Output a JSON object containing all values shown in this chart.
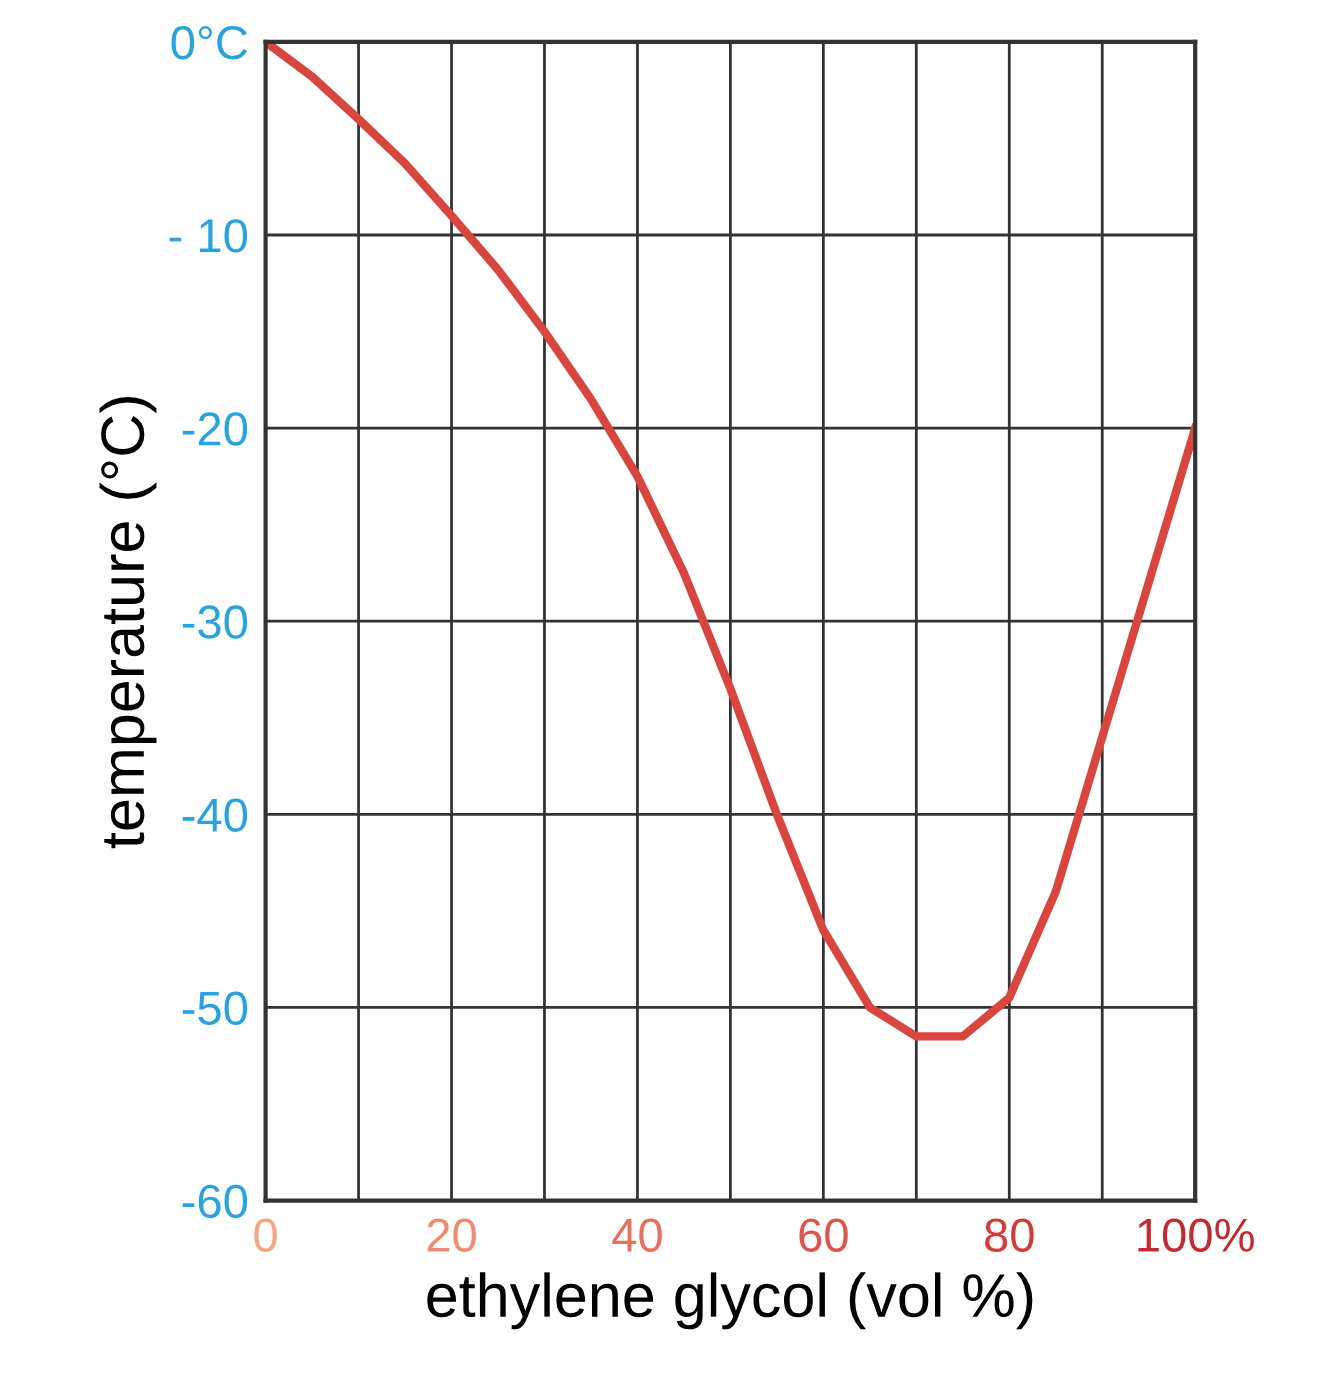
{
  "chart_data": {
    "type": "line",
    "xlabel": "ethylene glycol (vol %)",
    "ylabel": "temperature (°C)",
    "x": [
      0,
      5,
      10,
      15,
      20,
      25,
      30,
      35,
      40,
      45,
      50,
      55,
      60,
      65,
      70,
      75,
      80,
      85,
      90,
      95,
      100
    ],
    "series": [
      {
        "color": "#d9463f",
        "values": [
          0,
          -1.8,
          -4,
          -6.3,
          -9,
          -11.8,
          -15,
          -18.5,
          -22.5,
          -27.5,
          -33.5,
          -40,
          -46,
          -50,
          -51.5,
          -51.5,
          -49.5,
          -44,
          -36,
          -28,
          -20
        ]
      }
    ],
    "xlim": [
      0,
      100
    ],
    "ylim": [
      -60,
      0
    ],
    "xticks": [
      0,
      {
        "value": 10,
        "label": null
      },
      20,
      {
        "value": 30,
        "label": null
      },
      40,
      {
        "value": 50,
        "label": null
      },
      60,
      {
        "value": 70,
        "label": null
      },
      80,
      {
        "value": 90,
        "label": null
      },
      {
        "value": 100,
        "label": "100%"
      }
    ],
    "yticks": [
      -60,
      -50,
      -40,
      -30,
      -20,
      {
        "value": -10,
        "label": "- 10"
      },
      {
        "value": 0,
        "label": "0°C"
      }
    ],
    "grid": true,
    "marker": "none",
    "line_style": "solid"
  }
}
